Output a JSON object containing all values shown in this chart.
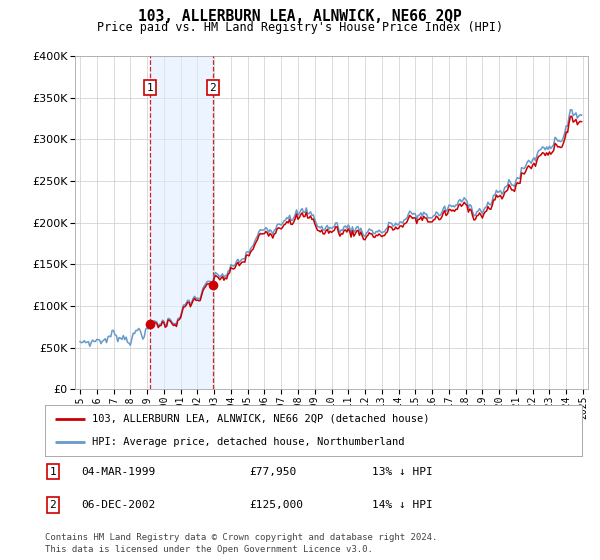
{
  "title": "103, ALLERBURN LEA, ALNWICK, NE66 2QP",
  "subtitle": "Price paid vs. HM Land Registry's House Price Index (HPI)",
  "ylim": [
    0,
    400000
  ],
  "yticks": [
    0,
    50000,
    100000,
    150000,
    200000,
    250000,
    300000,
    350000,
    400000
  ],
  "sale1_year": 1999,
  "sale1_month": 3,
  "sale1_price": 77950,
  "sale2_year": 2002,
  "sale2_month": 12,
  "sale2_price": 125000,
  "hpi_color": "#6699cc",
  "price_color": "#cc0000",
  "hpi_discount1": 0.13,
  "hpi_discount2": 0.14,
  "legend_entry1": "103, ALLERBURN LEA, ALNWICK, NE66 2QP (detached house)",
  "legend_entry2": "HPI: Average price, detached house, Northumberland",
  "table_rows": [
    {
      "num": "1",
      "date": "04-MAR-1999",
      "price": "£77,950",
      "hpi": "13% ↓ HPI"
    },
    {
      "num": "2",
      "date": "06-DEC-2002",
      "price": "£125,000",
      "hpi": "14% ↓ HPI"
    }
  ],
  "footnote1": "Contains HM Land Registry data © Crown copyright and database right 2024.",
  "footnote2": "This data is licensed under the Open Government Licence v3.0.",
  "bg": "#ffffff",
  "grid_color": "#cccccc",
  "span_color": "#ddeeff"
}
